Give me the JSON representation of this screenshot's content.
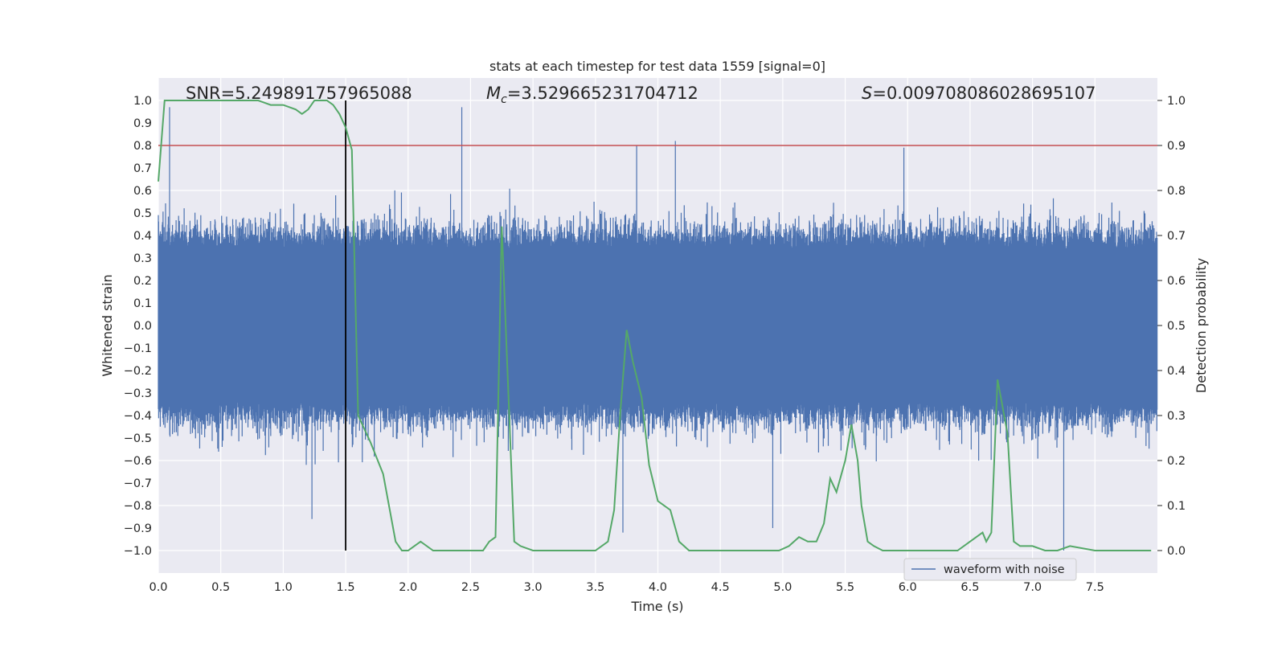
{
  "chart_data": {
    "type": "line",
    "title": "stats at each timestep for test data 1559 [signal=0]",
    "xlabel": "Time (s)",
    "ylabel_left": "Whitened strain",
    "ylabel_right": "Detection probability",
    "xlim": [
      0,
      8
    ],
    "ylim_left": [
      -1.1,
      1.1
    ],
    "ylim_right": [
      -0.05,
      1.05
    ],
    "xticks": [
      "0.0",
      "0.5",
      "1.0",
      "1.5",
      "2.0",
      "2.5",
      "3.0",
      "3.5",
      "4.0",
      "4.5",
      "5.0",
      "5.5",
      "6.0",
      "6.5",
      "7.0",
      "7.5"
    ],
    "yticks_left": [
      "1.0",
      "0.9",
      "0.8",
      "0.7",
      "0.6",
      "0.5",
      "0.4",
      "0.3",
      "0.2",
      "0.1",
      "0.0",
      "−0.1",
      "−0.2",
      "−0.3",
      "−0.4",
      "−0.5",
      "−0.6",
      "−0.7",
      "−0.8",
      "−0.9",
      "−1.0"
    ],
    "yticks_right": [
      "1.0",
      "0.9",
      "0.8",
      "0.7",
      "0.6",
      "0.5",
      "0.4",
      "0.3",
      "0.2",
      "0.1",
      "0.0"
    ],
    "grid": true,
    "annotations": {
      "snr_label": "SNR=5.249891757965088",
      "mc_symbol": "M",
      "mc_sub": "c",
      "mc_value": "=3.529665231704712",
      "s_symbol": "S",
      "s_value": "=0.009708086028695107"
    },
    "legend": {
      "placement": "lower-right",
      "label": "waveform with noise"
    },
    "threshold_probability": 0.9,
    "marker_time": 1.5,
    "waveform": {
      "name": "waveform with noise",
      "color": "#4c72b0",
      "description": "noisy whitened strain, dense band roughly ±0.4 with spikes to ±1.0",
      "notable_spikes": [
        {
          "t": 0.09,
          "v": 0.97
        },
        {
          "t": 2.43,
          "v": 0.97
        },
        {
          "t": 4.14,
          "v": 0.82
        },
        {
          "t": 3.83,
          "v": 0.8
        },
        {
          "t": 5.97,
          "v": 0.79
        },
        {
          "t": 1.23,
          "v": -0.86
        },
        {
          "t": 7.25,
          "v": -1.0
        },
        {
          "t": 4.92,
          "v": -0.9
        },
        {
          "t": 3.72,
          "v": -0.92
        }
      ]
    },
    "probability": {
      "name": "detection probability",
      "color": "#55a868",
      "x": [
        0.0,
        0.05,
        0.1,
        0.2,
        0.3,
        0.4,
        0.5,
        0.6,
        0.7,
        0.8,
        0.9,
        1.0,
        1.1,
        1.15,
        1.2,
        1.25,
        1.3,
        1.35,
        1.4,
        1.45,
        1.5,
        1.55,
        1.6,
        1.7,
        1.8,
        1.9,
        1.95,
        2.0,
        2.05,
        2.1,
        2.2,
        2.3,
        2.4,
        2.5,
        2.6,
        2.65,
        2.7,
        2.75,
        2.85,
        2.9,
        3.0,
        3.1,
        3.2,
        3.3,
        3.4,
        3.5,
        3.55,
        3.6,
        3.65,
        3.7,
        3.75,
        3.8,
        3.87,
        3.93,
        4.0,
        4.1,
        4.17,
        4.25,
        4.35,
        4.5,
        4.7,
        4.9,
        4.97,
        5.05,
        5.13,
        5.2,
        5.27,
        5.33,
        5.38,
        5.43,
        5.5,
        5.55,
        5.6,
        5.63,
        5.68,
        5.73,
        5.8,
        5.9,
        6.0,
        6.2,
        6.4,
        6.5,
        6.55,
        6.6,
        6.63,
        6.67,
        6.72,
        6.8,
        6.85,
        6.9,
        7.0,
        7.1,
        7.2,
        7.3,
        7.5,
        7.75,
        7.95
      ],
      "y": [
        0.82,
        1.0,
        1.0,
        1.0,
        1.0,
        1.0,
        1.0,
        1.0,
        1.0,
        1.0,
        0.99,
        0.99,
        0.98,
        0.97,
        0.98,
        1.0,
        1.0,
        1.0,
        0.99,
        0.97,
        0.94,
        0.89,
        0.3,
        0.24,
        0.17,
        0.02,
        0.0,
        0.0,
        0.01,
        0.02,
        0.0,
        0.0,
        0.0,
        0.0,
        0.0,
        0.02,
        0.03,
        0.72,
        0.02,
        0.01,
        0.0,
        0.0,
        0.0,
        0.0,
        0.0,
        0.0,
        0.01,
        0.02,
        0.09,
        0.31,
        0.49,
        0.42,
        0.34,
        0.19,
        0.11,
        0.09,
        0.02,
        0.0,
        0.0,
        0.0,
        0.0,
        0.0,
        0.0,
        0.01,
        0.03,
        0.02,
        0.02,
        0.06,
        0.16,
        0.13,
        0.2,
        0.28,
        0.2,
        0.1,
        0.02,
        0.01,
        0.0,
        0.0,
        0.0,
        0.0,
        0.0,
        0.02,
        0.03,
        0.04,
        0.02,
        0.04,
        0.38,
        0.26,
        0.02,
        0.01,
        0.01,
        0.0,
        0.0,
        0.01,
        0.0,
        0.0,
        0.0
      ]
    }
  }
}
